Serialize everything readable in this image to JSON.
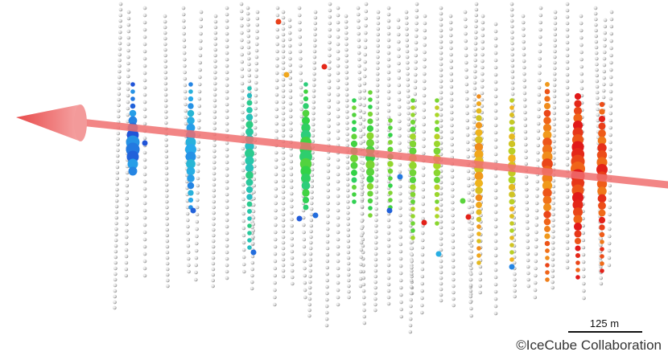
{
  "figure": {
    "scale_bar_label": "125 m",
    "credit": "©IceCube Collaboration"
  },
  "colors": {
    "track": "#f26a6a",
    "sensor_inactive": "#d9d9d9",
    "hit_early": "#1e3fd0",
    "hit_mid": "#2fd64b",
    "hit_late": "#e81e1e"
  }
}
